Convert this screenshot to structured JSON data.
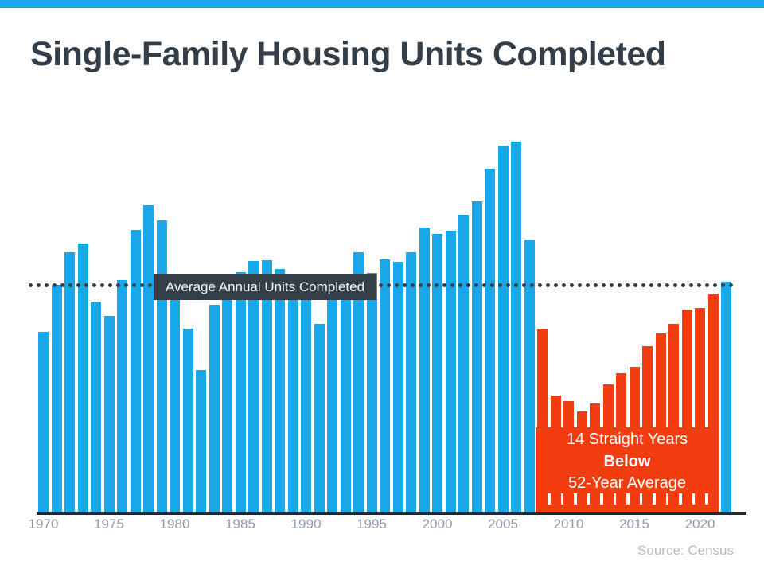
{
  "slide": {
    "title": "Single-Family Housing Units Completed",
    "source_note": "Source: Census",
    "accent_bar_color": "#18a7e8",
    "background_color": "#ffffff",
    "title_color": "#333e48"
  },
  "chart_data": {
    "type": "bar",
    "title": "Single-Family Housing Units Completed",
    "xlabel": "",
    "ylabel": "",
    "unit": "housing units completed per year (thousands, estimated from bar heights)",
    "grid": false,
    "legend": "none",
    "ylim": [
      0,
      1750
    ],
    "x_tick_labels": [
      "1970",
      "1975",
      "1980",
      "1985",
      "1990",
      "1995",
      "2000",
      "2005",
      "2010",
      "2015",
      "2020"
    ],
    "years": [
      1970,
      1971,
      1972,
      1973,
      1974,
      1975,
      1976,
      1977,
      1978,
      1979,
      1980,
      1981,
      1982,
      1983,
      1984,
      1985,
      1986,
      1987,
      1988,
      1989,
      1990,
      1991,
      1992,
      1993,
      1994,
      1995,
      1996,
      1997,
      1998,
      1999,
      2000,
      2001,
      2002,
      2003,
      2004,
      2005,
      2006,
      2007,
      2008,
      2009,
      2010,
      2011,
      2012,
      2013,
      2014,
      2015,
      2016,
      2017,
      2018,
      2019,
      2020,
      2021,
      2022
    ],
    "values": [
      802,
      1014,
      1160,
      1197,
      940,
      875,
      1034,
      1258,
      1369,
      1301,
      957,
      819,
      632,
      924,
      1025,
      1072,
      1120,
      1123,
      1085,
      1026,
      966,
      838,
      964,
      1039,
      1160,
      1066,
      1129,
      1116,
      1160,
      1270,
      1242,
      1256,
      1325,
      1386,
      1532,
      1636,
      1655,
      1218,
      819,
      520,
      496,
      447,
      483,
      569,
      620,
      648,
      738,
      795,
      840,
      903,
      912,
      970,
      1028
    ],
    "below_average_years": [
      2008,
      2009,
      2010,
      2011,
      2012,
      2013,
      2014,
      2015,
      2016,
      2017,
      2018,
      2019,
      2020,
      2021
    ],
    "colors": {
      "default_bar": "#18a7e8",
      "below_average_bar": "#f23d10",
      "dotted_line": "#333e48",
      "axis_line": "#20282e",
      "x_tick_label": "#8d99a8"
    },
    "average_line": {
      "label": "Average Annual Units Completed",
      "value": 1010,
      "style": "dotted",
      "label_background": "#333e48",
      "label_text_color": "#f4f6f7"
    },
    "annotation": {
      "line1": "14 Straight Years",
      "line2": "Below",
      "line3": "52-Year Average",
      "text_color": "#ffffff",
      "background_color": "#f23d10"
    }
  }
}
